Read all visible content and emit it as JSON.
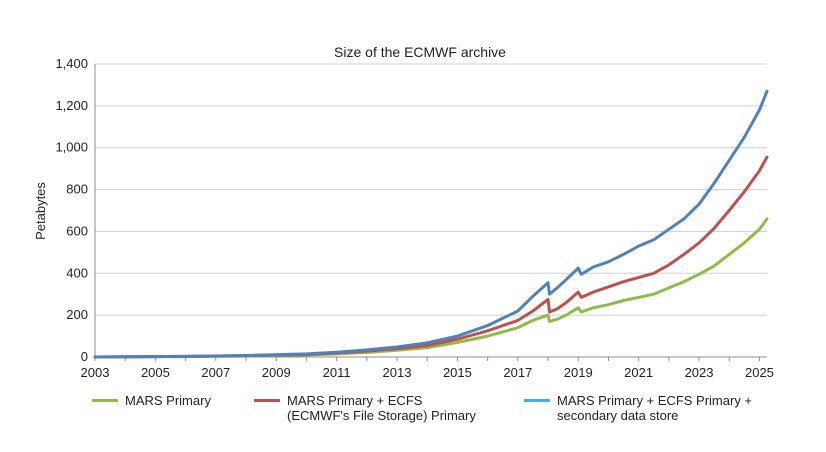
{
  "chart_data": {
    "type": "line",
    "title": "Size of the ECMWF archive",
    "xlabel": "",
    "ylabel": "Petabytes",
    "xlim": [
      2003,
      2025.25
    ],
    "ylim": [
      0,
      1400
    ],
    "x_ticks": [
      "2003",
      "2005",
      "2007",
      "2009",
      "2011",
      "2013",
      "2015",
      "2017",
      "2019",
      "2021",
      "2023",
      "2025"
    ],
    "y_ticks": [
      "0",
      "200",
      "400",
      "600",
      "800",
      "1,000",
      "1,200",
      "1,400"
    ],
    "grid": "horizontal",
    "legend_position": "bottom",
    "series": [
      {
        "name": "MARS Primary",
        "color": "#8fbc45",
        "x": [
          2003,
          2006,
          2008,
          2010,
          2011,
          2012,
          2013,
          2014,
          2015,
          2016,
          2017,
          2017.5,
          2018.0,
          2018.05,
          2018.3,
          2018.6,
          2019.0,
          2019.1,
          2019.5,
          2020.0,
          2020.5,
          2021.0,
          2021.5,
          2022.0,
          2022.5,
          2023.0,
          2023.5,
          2024.0,
          2024.5,
          2025.0,
          2025.25
        ],
        "values": [
          0,
          2,
          5,
          10,
          15,
          22,
          32,
          45,
          70,
          100,
          140,
          175,
          200,
          170,
          180,
          200,
          235,
          215,
          235,
          250,
          270,
          285,
          300,
          330,
          360,
          395,
          435,
          490,
          545,
          610,
          660
        ]
      },
      {
        "name": "MARS Primary + ECFS",
        "name_line2": "(ECMWF's File Storage) Primary",
        "color": "#c0504d",
        "x": [
          2003,
          2006,
          2008,
          2010,
          2011,
          2012,
          2013,
          2014,
          2015,
          2016,
          2017,
          2017.5,
          2018.0,
          2018.05,
          2018.3,
          2018.6,
          2019.0,
          2019.1,
          2019.5,
          2020.0,
          2020.5,
          2021.0,
          2021.5,
          2022.0,
          2022.5,
          2023.0,
          2023.5,
          2024.0,
          2024.5,
          2025.0,
          2025.25
        ],
        "values": [
          0,
          3,
          6,
          12,
          19,
          28,
          40,
          55,
          85,
          125,
          175,
          220,
          275,
          215,
          230,
          260,
          310,
          285,
          310,
          335,
          360,
          380,
          400,
          440,
          490,
          545,
          615,
          700,
          790,
          890,
          955
        ]
      },
      {
        "name": "MARS Primary + ECFS Primary +",
        "name_line2": "secondary data store",
        "color": "#4f81bd",
        "legend_color": "#39b6e6",
        "x": [
          2003,
          2006,
          2008,
          2010,
          2011,
          2012,
          2013,
          2014,
          2015,
          2016,
          2017,
          2017.5,
          2018.0,
          2018.05,
          2018.3,
          2018.6,
          2019.0,
          2019.1,
          2019.5,
          2020.0,
          2020.5,
          2021.0,
          2021.5,
          2022.0,
          2022.5,
          2023.0,
          2023.5,
          2024.0,
          2024.5,
          2025.0,
          2025.25
        ],
        "values": [
          0,
          3,
          7,
          15,
          23,
          34,
          48,
          68,
          100,
          150,
          220,
          290,
          355,
          300,
          330,
          370,
          425,
          395,
          430,
          455,
          490,
          530,
          560,
          610,
          660,
          730,
          830,
          940,
          1050,
          1180,
          1270
        ]
      }
    ]
  }
}
